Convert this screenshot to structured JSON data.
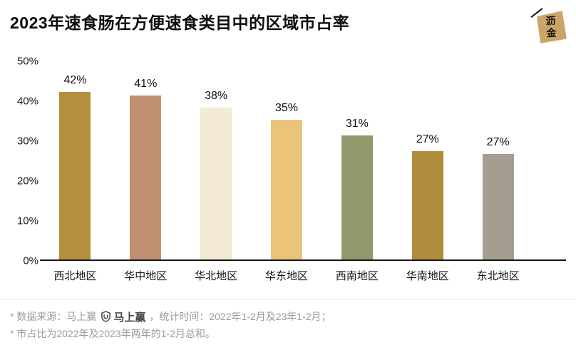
{
  "header": {
    "title": "2023年速食肠在方便速食类目中的区域市占率",
    "logo_char_top": "沥",
    "logo_char_bottom": "金"
  },
  "chart_data": {
    "type": "bar",
    "title": "2023年速食肠在方便速食类目中的区域市占率",
    "categories": [
      "西北地区",
      "华中地区",
      "华北地区",
      "华东地区",
      "西南地区",
      "华南地区",
      "东北地区"
    ],
    "values": [
      42,
      41,
      38,
      35,
      31,
      27.2,
      26.5
    ],
    "value_labels": [
      "42%",
      "41%",
      "38%",
      "35%",
      "31%",
      "27%",
      "27%"
    ],
    "bar_colors": [
      "#b3903e",
      "#c08f71",
      "#f2ead3",
      "#eac478",
      "#92996c",
      "#b08d3c",
      "#a59d90"
    ],
    "xlabel": "",
    "ylabel": "",
    "ylim": [
      0,
      50
    ],
    "yticks": [
      "0%",
      "10%",
      "20%",
      "30%",
      "40%",
      "50%"
    ],
    "grid": false,
    "legend": false
  },
  "footer": {
    "note1_prefix": "* 数据来源：马上赢",
    "brand_logo_text": "马上赢",
    "note1_suffix": "，统计时间：2022年1-2月及23年1-2月；",
    "note2": "* 市占比为2022年及2023年两年的1-2月总和。"
  }
}
